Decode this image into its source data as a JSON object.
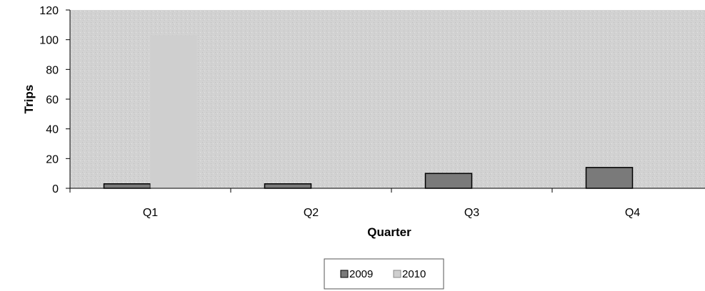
{
  "chart_data": {
    "type": "bar",
    "title": "",
    "xlabel": "Quarter",
    "ylabel": "Trips",
    "categories": [
      "Q1",
      "Q2",
      "Q3",
      "Q4"
    ],
    "series": [
      {
        "name": "2009",
        "values": [
          3,
          3,
          10,
          14
        ],
        "color": "#7a7a7a"
      },
      {
        "name": "2010",
        "values": [
          103,
          0,
          0,
          0
        ],
        "color": "#cfcfcf"
      }
    ],
    "ylim": [
      0,
      120
    ],
    "yticks": [
      "0",
      "20",
      "40",
      "60",
      "80",
      "100",
      "120"
    ],
    "grid": false,
    "plot_background": "#d4d4d4",
    "legend": {
      "position": "bottom",
      "entries": [
        "2009",
        "2010"
      ]
    }
  }
}
